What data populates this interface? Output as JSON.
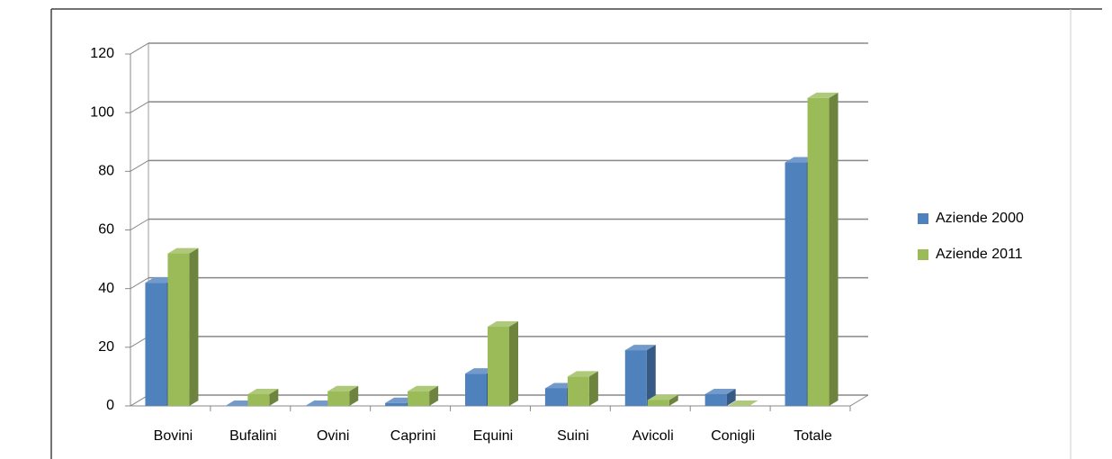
{
  "chart_data": {
    "type": "bar3d",
    "categories": [
      "Bovini",
      "Bufalini",
      "Ovini",
      "Caprini",
      "Equini",
      "Suini",
      "Avicoli",
      "Conigli",
      "Totale"
    ],
    "series": [
      {
        "name": "Aziende 2000",
        "color": "#4f81bd",
        "values": [
          42,
          0,
          0,
          1,
          11,
          6,
          19,
          4,
          83
        ]
      },
      {
        "name": "Aziende 2011",
        "color": "#9bbb59",
        "values": [
          52,
          4,
          5,
          5,
          27,
          10,
          2,
          0,
          105
        ]
      }
    ],
    "ylim": [
      0,
      120
    ],
    "yticks": [
      0,
      20,
      40,
      60,
      80,
      100,
      120
    ],
    "grid": true,
    "legend": "right"
  }
}
